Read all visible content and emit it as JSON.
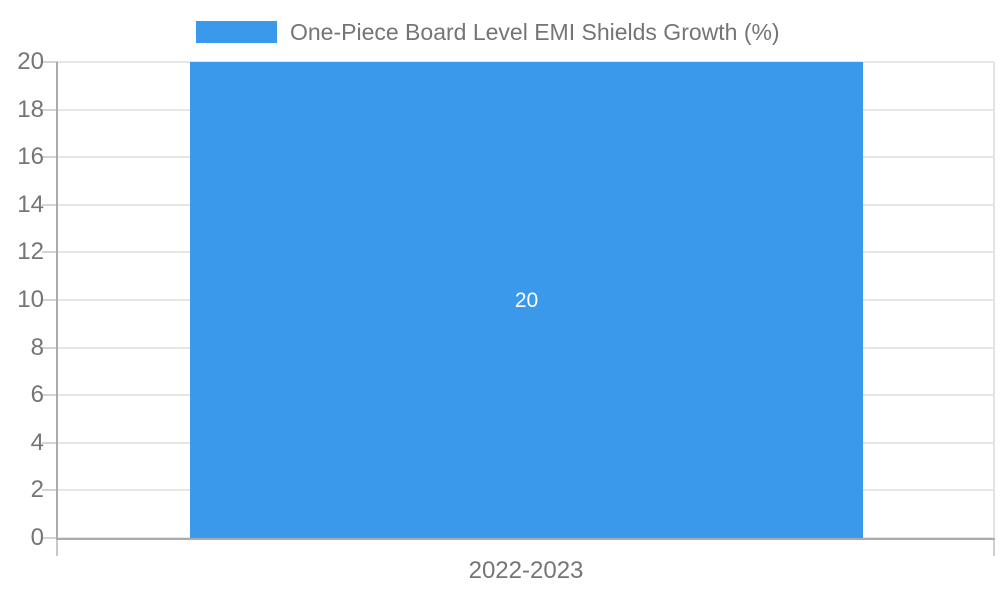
{
  "chart_data": {
    "type": "bar",
    "title": "",
    "categories": [
      "2022-2023"
    ],
    "series": [
      {
        "name": "One-Piece Board Level EMI Shields Growth (%)",
        "values": [
          20
        ],
        "color": "#3b99ec"
      }
    ],
    "ylim": [
      0,
      20
    ],
    "y_ticks": [
      "0",
      "2",
      "4",
      "6",
      "8",
      "10",
      "12",
      "14",
      "16",
      "18",
      "20"
    ],
    "grid": true,
    "legend_position": "top",
    "xlabel": "",
    "ylabel": "",
    "bar_label": "20",
    "colors": {
      "bar": "#3b99ec",
      "bar_label_text": "#ffffff",
      "tick_label_text": "#757575",
      "legend_text": "#757575",
      "gridline": "#e6e6e6",
      "tick_stub": "#d4d4d4",
      "axis_line": "#ababab",
      "axis_tail": "#c8c8c8",
      "right_border": "#e4e4e4",
      "right_border_tail": "#d0d0d0",
      "background": "#ffffff"
    }
  }
}
